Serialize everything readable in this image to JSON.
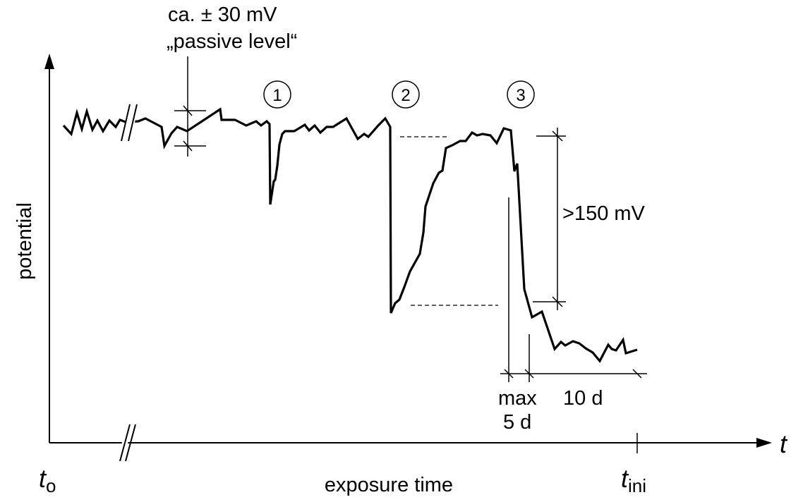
{
  "chart_data": {
    "type": "line",
    "title": "",
    "xlabel": "exposure time",
    "ylabel": "potential",
    "x_axis_symbol": "t",
    "x_origin_label": {
      "main": "t",
      "sub": "o"
    },
    "x_end_label": {
      "main": "t",
      "sub": "ini"
    },
    "grid": false,
    "legend": "none",
    "axis_break": true,
    "annotations": {
      "passive_level_line1": "ca. ± 30 mV",
      "passive_level_line2": "„passive level“",
      "drop_label": ">150 mV",
      "max_label": "max",
      "max_days_label": "5 d",
      "ten_days_label": "10 d"
    },
    "markers": [
      "1",
      "2",
      "3"
    ],
    "series": [
      {
        "values": [
          [
            90,
            178
          ],
          [
            101,
            190
          ],
          [
            109,
            160
          ],
          [
            116,
            183
          ],
          [
            123,
            158
          ],
          [
            131,
            184
          ],
          [
            138,
            171
          ],
          [
            146,
            186
          ],
          [
            155,
            171
          ],
          [
            164,
            180
          ],
          [
            170,
            170
          ],
          [
            178,
            173
          ],
          [
            196,
            172
          ],
          [
            206,
            168
          ],
          [
            229,
            180
          ],
          [
            233,
            207
          ],
          [
            243,
            189
          ],
          [
            251,
            180
          ],
          [
            265,
            186
          ],
          [
            312,
            155
          ],
          [
            314,
            170
          ],
          [
            333,
            170
          ],
          [
            349,
            178
          ],
          [
            363,
            172
          ],
          [
            370,
            178
          ],
          [
            378,
            172
          ],
          [
            382,
            176
          ],
          [
            383,
            290
          ],
          [
            388,
            257
          ],
          [
            390,
            255
          ],
          [
            393,
            235
          ],
          [
            396,
            205
          ],
          [
            400,
            190
          ],
          [
            404,
            186
          ],
          [
            417,
            186
          ],
          [
            432,
            177
          ],
          [
            438,
            185
          ],
          [
            446,
            178
          ],
          [
            454,
            188
          ],
          [
            463,
            180
          ],
          [
            472,
            180
          ],
          [
            491,
            168
          ],
          [
            507,
            197
          ],
          [
            516,
            190
          ],
          [
            522,
            194
          ],
          [
            536,
            178
          ],
          [
            546,
            168
          ],
          [
            553,
            180
          ],
          [
            554,
            444
          ],
          [
            560,
            430
          ],
          [
            566,
            425
          ],
          [
            573,
            407
          ],
          [
            581,
            385
          ],
          [
            595,
            360
          ],
          [
            600,
            330
          ],
          [
            603,
            293
          ],
          [
            614,
            260
          ],
          [
            622,
            245
          ],
          [
            627,
            242
          ],
          [
            632,
            210
          ],
          [
            641,
            206
          ],
          [
            652,
            200
          ],
          [
            660,
            200
          ],
          [
            669,
            188
          ],
          [
            676,
            192
          ],
          [
            684,
            190
          ],
          [
            695,
            192
          ],
          [
            704,
            203
          ],
          [
            714,
            182
          ],
          [
            724,
            185
          ],
          [
            729,
            243
          ],
          [
            733,
            232
          ],
          [
            743,
            410
          ],
          [
            754,
            450
          ],
          [
            768,
            442
          ],
          [
            786,
            495
          ],
          [
            795,
            485
          ],
          [
            801,
            490
          ],
          [
            812,
            484
          ],
          [
            821,
            487
          ],
          [
            830,
            494
          ],
          [
            840,
            500
          ],
          [
            850,
            512
          ],
          [
            862,
            489
          ],
          [
            867,
            495
          ],
          [
            873,
            497
          ],
          [
            883,
            482
          ],
          [
            887,
            501
          ],
          [
            903,
            496
          ]
        ]
      }
    ]
  }
}
